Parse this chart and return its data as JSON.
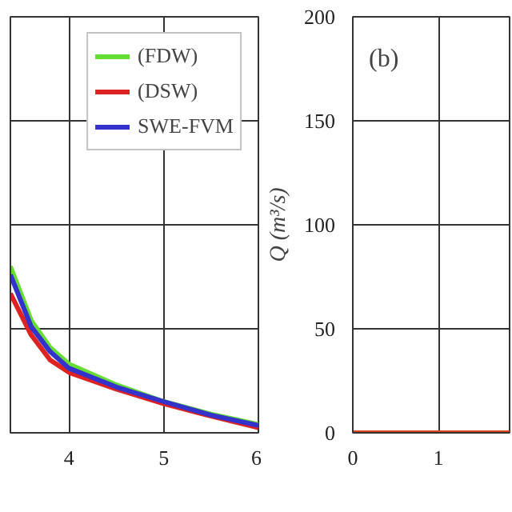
{
  "chart_data": [
    {
      "type": "line",
      "xlim": [
        3.38,
        6
      ],
      "xticks": [
        4,
        5,
        6
      ],
      "ylim": [
        0,
        200
      ],
      "yticks": [
        0,
        50,
        100,
        150,
        200
      ],
      "tick_labels": "x",
      "grid": true,
      "legend": "top right",
      "x": [
        3.38,
        3.6,
        3.8,
        4,
        4.5,
        5,
        5.5,
        6
      ],
      "series": [
        {
          "name": "(FDW)",
          "color": "#66dd33",
          "values": [
            80,
            54,
            41,
            33,
            23,
            15,
            9,
            4
          ]
        },
        {
          "name": "(DSW)",
          "color": "#dd2222",
          "values": [
            67,
            47,
            35,
            29,
            21,
            14,
            8,
            2.5
          ]
        },
        {
          "name": "SWE-FVM",
          "color": "#3333cc",
          "values": [
            76,
            51,
            39,
            31,
            22,
            15,
            8.5,
            3.5
          ]
        }
      ]
    },
    {
      "type": "line",
      "xlim": [
        0,
        1.83
      ],
      "xticks": [
        0,
        1
      ],
      "ylim": [
        0,
        200
      ],
      "yticks": [
        0,
        50,
        100,
        150,
        200
      ],
      "grid": true,
      "ylabel": "Q (m³/s)",
      "annotations": [
        "(b)"
      ],
      "x": [
        0,
        0.5,
        1,
        1.5,
        1.83
      ],
      "series": [
        {
          "color": "#dd4422",
          "values": [
            0,
            0,
            0,
            0,
            0
          ]
        }
      ]
    }
  ]
}
